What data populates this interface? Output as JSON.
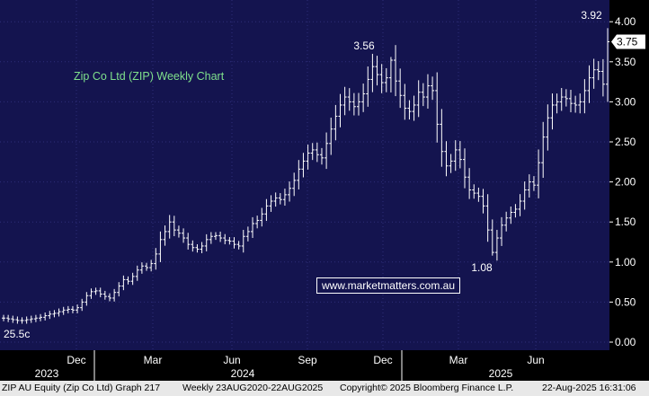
{
  "chart_data": {
    "type": "ohlc",
    "title": "Zip Co Ltd (ZIP) Weekly Chart",
    "watermark": "www.marketmatters.com.au",
    "last_price_label": "3.75",
    "ylim": [
      0,
      4
    ],
    "y_ticks": [
      "0.00",
      "0.50",
      "1.00",
      "1.50",
      "2.00",
      "2.50",
      "3.00",
      "3.50",
      "4.00"
    ],
    "x_month_labels": [
      "Dec",
      "Mar",
      "Jun",
      "Sep",
      "Dec",
      "Mar",
      "Jun"
    ],
    "x_year_labels": [
      "2023",
      "2024",
      "2025"
    ],
    "annotations": [
      "3.92",
      "3.56",
      "1.08",
      "25.5c"
    ],
    "closes": [
      0.3,
      0.29,
      0.28,
      0.27,
      0.27,
      0.28,
      0.29,
      0.3,
      0.31,
      0.33,
      0.35,
      0.36,
      0.38,
      0.4,
      0.41,
      0.4,
      0.43,
      0.5,
      0.58,
      0.63,
      0.64,
      0.6,
      0.57,
      0.55,
      0.62,
      0.7,
      0.78,
      0.76,
      0.82,
      0.9,
      0.95,
      0.93,
      0.98,
      1.1,
      1.28,
      1.38,
      1.5,
      1.4,
      1.36,
      1.3,
      1.22,
      1.18,
      1.16,
      1.2,
      1.28,
      1.32,
      1.33,
      1.3,
      1.27,
      1.26,
      1.22,
      1.2,
      1.32,
      1.38,
      1.48,
      1.52,
      1.6,
      1.7,
      1.76,
      1.8,
      1.78,
      1.84,
      1.92,
      2.02,
      2.16,
      2.26,
      2.36,
      2.4,
      2.34,
      2.3,
      2.48,
      2.66,
      2.82,
      2.96,
      3.06,
      3.0,
      2.94,
      3.0,
      3.1,
      3.28,
      3.44,
      3.34,
      3.24,
      3.3,
      3.52,
      3.26,
      3.08,
      2.92,
      2.88,
      2.96,
      3.12,
      3.06,
      3.2,
      3.14,
      2.72,
      2.38,
      2.2,
      2.26,
      2.4,
      2.28,
      2.06,
      1.9,
      1.86,
      1.82,
      1.7,
      1.4,
      1.12,
      1.3,
      1.46,
      1.55,
      1.62,
      1.66,
      1.76,
      1.9,
      2.0,
      1.96,
      2.24,
      2.56,
      2.8,
      2.96,
      3.0,
      3.06,
      3.04,
      2.98,
      2.96,
      3.0,
      3.14,
      3.3,
      3.4,
      3.38,
      3.22,
      3.75
    ]
  },
  "footer": {
    "security": "ZIP AU Equity (Zip Co Ltd) Graph 217",
    "range": "Weekly 23AUG2020-22AUG2025",
    "copyright": "Copyright© 2025 Bloomberg Finance L.P.",
    "timestamp": "22-Aug-2025 16:31:06"
  }
}
